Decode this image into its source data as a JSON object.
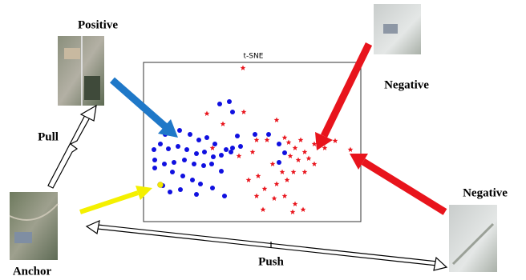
{
  "labels": {
    "positive": "Positive",
    "negative_top": "Negative",
    "negative_right": "Negative",
    "anchor": "Anchor",
    "pull": "Pull",
    "push": "Push"
  },
  "plot": {
    "title": "t-SNE"
  }
}
